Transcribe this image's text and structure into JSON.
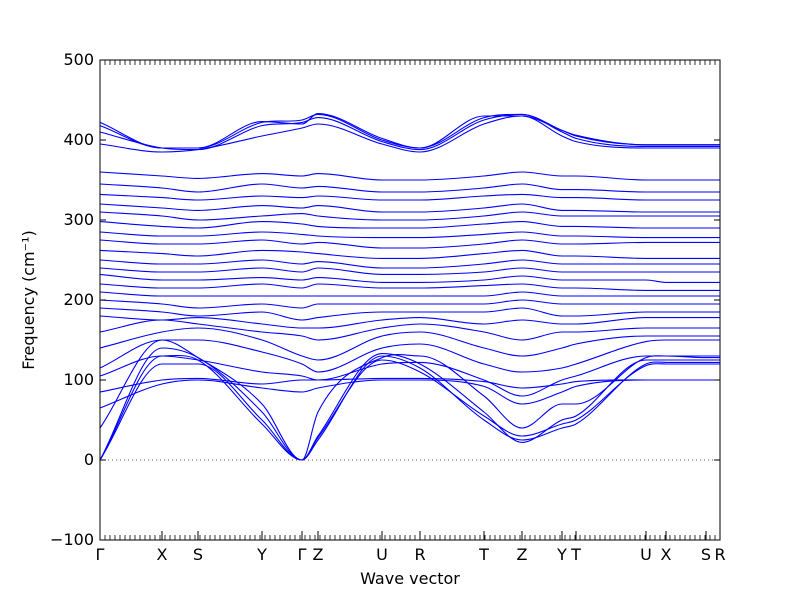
{
  "chart_data": {
    "type": "line",
    "xlabel": "Wave vector",
    "ylabel": "Frequency (cm⁻¹)",
    "ylim": [
      -100,
      500
    ],
    "yticks": [
      -100,
      0,
      100,
      200,
      300,
      400,
      500
    ],
    "grid": false,
    "legend": "none",
    "zero_line": 0,
    "colors": {
      "band": "#0000ff",
      "zero_line": "#555555"
    },
    "x_range": [
      0,
      31
    ],
    "high_symmetry_points": [
      {
        "label": "Γ",
        "x": 0
      },
      {
        "label": "X",
        "x": 3.1
      },
      {
        "label": "S",
        "x": 4.9
      },
      {
        "label": "Y",
        "x": 8.1
      },
      {
        "label": "Γ",
        "x": 10.1
      },
      {
        "label": "Z",
        "x": 10.9
      },
      {
        "label": "U",
        "x": 14.1
      },
      {
        "label": "R",
        "x": 16.0
      },
      {
        "label": "T",
        "x": 19.2
      },
      {
        "label": "Z",
        "x": 21.1
      },
      {
        "label": "Y",
        "x": 23.1
      },
      {
        "label": "T",
        "x": 23.8
      },
      {
        "label": "U",
        "x": 27.3
      },
      {
        "label": "X",
        "x": 28.3
      },
      {
        "label": "S",
        "x": 30.3
      },
      {
        "label": "R",
        "x": 31.0
      }
    ],
    "series": [
      {
        "values": [
          0,
          130,
          125,
          45,
          0,
          25,
          130,
          115,
          50,
          25,
          40,
          45,
          120,
          122,
          122,
          122
        ]
      },
      {
        "values": [
          0,
          140,
          128,
          60,
          0,
          30,
          133,
          120,
          60,
          22,
          50,
          55,
          125,
          125,
          125,
          125
        ]
      },
      {
        "values": [
          0,
          120,
          120,
          50,
          0,
          28,
          125,
          110,
          55,
          30,
          45,
          50,
          118,
          120,
          120,
          120
        ]
      },
      {
        "values": [
          40,
          150,
          128,
          70,
          0,
          60,
          128,
          130,
          80,
          40,
          70,
          70,
          128,
          130,
          128,
          128
        ]
      },
      {
        "values": [
          65,
          95,
          100,
          90,
          85,
          90,
          100,
          100,
          92,
          70,
          85,
          92,
          100,
          100,
          100,
          100
        ]
      },
      {
        "values": [
          85,
          100,
          102,
          95,
          100,
          100,
          102,
          102,
          98,
          90,
          95,
          98,
          100,
          100,
          100,
          100
        ]
      },
      {
        "values": [
          105,
          130,
          125,
          110,
          105,
          100,
          120,
          122,
          100,
          80,
          100,
          105,
          130,
          130,
          130,
          130
        ]
      },
      {
        "values": [
          115,
          150,
          150,
          135,
          120,
          110,
          140,
          145,
          120,
          110,
          115,
          120,
          148,
          150,
          150,
          150
        ]
      },
      {
        "values": [
          140,
          160,
          165,
          150,
          130,
          125,
          155,
          160,
          140,
          130,
          140,
          145,
          155,
          155,
          155,
          155
        ]
      },
      {
        "values": [
          160,
          175,
          170,
          160,
          155,
          150,
          165,
          170,
          160,
          150,
          160,
          160,
          165,
          165,
          165,
          165
        ]
      },
      {
        "values": [
          180,
          175,
          178,
          170,
          165,
          165,
          175,
          178,
          170,
          175,
          170,
          170,
          178,
          178,
          178,
          178
        ]
      },
      {
        "values": [
          190,
          185,
          180,
          185,
          175,
          178,
          185,
          185,
          185,
          190,
          180,
          180,
          185,
          185,
          185,
          185
        ]
      },
      {
        "values": [
          200,
          195,
          190,
          195,
          190,
          195,
          195,
          195,
          195,
          200,
          195,
          195,
          195,
          195,
          195,
          195
        ]
      },
      {
        "values": [
          210,
          205,
          205,
          205,
          205,
          205,
          205,
          205,
          205,
          210,
          205,
          205,
          205,
          205,
          205,
          205
        ]
      },
      {
        "values": [
          220,
          215,
          215,
          220,
          215,
          220,
          215,
          215,
          218,
          220,
          215,
          215,
          212,
          212,
          212,
          212
        ]
      },
      {
        "values": [
          232,
          225,
          225,
          228,
          225,
          228,
          222,
          222,
          225,
          230,
          225,
          225,
          225,
          222,
          222,
          222
        ]
      },
      {
        "values": [
          240,
          235,
          235,
          240,
          235,
          240,
          232,
          232,
          235,
          240,
          235,
          235,
          235,
          235,
          235,
          235
        ]
      },
      {
        "values": [
          250,
          245,
          245,
          250,
          245,
          248,
          240,
          240,
          245,
          250,
          245,
          245,
          245,
          245,
          245,
          245
        ]
      },
      {
        "values": [
          262,
          258,
          255,
          262,
          260,
          258,
          252,
          252,
          258,
          262,
          255,
          255,
          252,
          252,
          252,
          252
        ]
      },
      {
        "values": [
          275,
          270,
          270,
          275,
          270,
          272,
          265,
          265,
          270,
          275,
          270,
          270,
          272,
          272,
          272,
          272
        ]
      },
      {
        "values": [
          285,
          280,
          280,
          285,
          282,
          280,
          278,
          278,
          282,
          285,
          280,
          280,
          278,
          278,
          278,
          278
        ]
      },
      {
        "values": [
          298,
          292,
          290,
          298,
          295,
          292,
          290,
          290,
          295,
          298,
          292,
          292,
          290,
          290,
          290,
          290
        ]
      },
      {
        "values": [
          310,
          305,
          300,
          305,
          308,
          305,
          300,
          300,
          305,
          310,
          305,
          305,
          305,
          305,
          305,
          305
        ]
      },
      {
        "values": [
          320,
          315,
          312,
          318,
          315,
          318,
          310,
          310,
          315,
          320,
          312,
          312,
          310,
          310,
          310,
          310
        ]
      },
      {
        "values": [
          332,
          328,
          325,
          330,
          328,
          330,
          325,
          325,
          330,
          332,
          328,
          328,
          325,
          325,
          325,
          325
        ]
      },
      {
        "values": [
          345,
          340,
          335,
          345,
          340,
          342,
          335,
          335,
          340,
          345,
          338,
          338,
          335,
          335,
          335,
          335
        ]
      },
      {
        "values": [
          360,
          355,
          352,
          358,
          355,
          358,
          350,
          350,
          355,
          360,
          355,
          355,
          350,
          350,
          350,
          350
        ]
      },
      {
        "values": [
          395,
          385,
          388,
          405,
          415,
          420,
          395,
          385,
          420,
          430,
          405,
          398,
          390,
          390,
          390,
          390
        ]
      },
      {
        "values": [
          410,
          390,
          388,
          418,
          422,
          428,
          398,
          388,
          425,
          432,
          410,
          402,
          392,
          392,
          392,
          392
        ]
      },
      {
        "values": [
          418,
          390,
          390,
          422,
          425,
          432,
          400,
          390,
          428,
          432,
          412,
          405,
          394,
          394,
          394,
          394
        ]
      },
      {
        "values": [
          422,
          390,
          390,
          423,
          420,
          433,
          402,
          390,
          430,
          430,
          412,
          406,
          394,
          394,
          394,
          394
        ]
      }
    ]
  }
}
